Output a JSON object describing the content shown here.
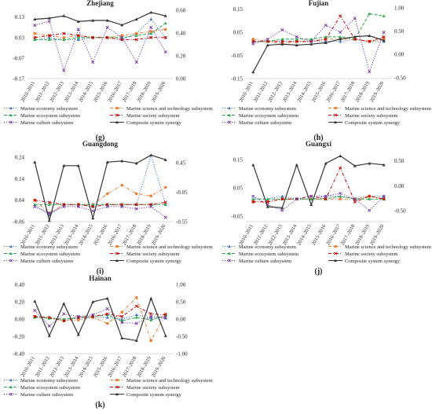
{
  "categories": [
    "2010–2011",
    "2011–2012",
    "2012–2013",
    "2013–2014",
    "2014–2015",
    "2015–2016",
    "2016–2017",
    "2017–2018",
    "2018–2019",
    "2019–2020"
  ],
  "series_styles": {
    "Marine economy subsystem": {
      "color": "#4472c4",
      "dash": "dot",
      "marker": "triangle"
    },
    "Marine science and technology subsystem": {
      "color": "#ed7d31",
      "dash": "dashdot",
      "marker": "circle"
    },
    "Marine ecosystem subsystem": {
      "color": "#2fa84f",
      "dash": "dash",
      "marker": "triangle"
    },
    "Marine society subsystem": {
      "color": "#c00000",
      "dash": "dashdot",
      "marker": "cross"
    },
    "Marine culture subsystem": {
      "color": "#7030a0",
      "dash": "dot",
      "marker": "cross"
    },
    "Composite system synergy": {
      "color": "#333333",
      "dash": "solid",
      "marker": "triangle"
    }
  },
  "chart_data": [
    {
      "type": "line",
      "title": "Zhejiang",
      "panel_label": "(g)",
      "left_ticks": [
        "0.13",
        "0.03",
        "-0.07",
        "-0.17"
      ],
      "ylim": [
        -0.17,
        0.175
      ],
      "right_ticks": [
        "0.60",
        "0.40",
        "0.20",
        "0.00"
      ],
      "y2lim": [
        0,
        0.62
      ],
      "series": [
        {
          "name": "Marine economy subsystem",
          "values": [
            0.02,
            0.03,
            0.02,
            0.02,
            0.03,
            0.03,
            0.02,
            0.05,
            0.12,
            0.03
          ]
        },
        {
          "name": "Marine science and technology subsystem",
          "values": [
            0.05,
            0.04,
            0.03,
            0.04,
            0.03,
            0.03,
            0.04,
            0.05,
            0.06,
            0.07
          ]
        },
        {
          "name": "Marine ecosystem subsystem",
          "values": [
            0.02,
            0.02,
            0.02,
            0.03,
            0.03,
            0.03,
            0.03,
            0.04,
            0.05,
            0.1
          ]
        },
        {
          "name": "Marine society subsystem",
          "values": [
            0.03,
            0.04,
            0.05,
            0.04,
            0.03,
            0.03,
            0.02,
            0.02,
            0.03,
            0.03
          ]
        },
        {
          "name": "Marine culture subsystem",
          "values": [
            0.09,
            0.11,
            -0.13,
            0.07,
            -0.09,
            0.08,
            0.03,
            -0.09,
            0.08,
            -0.04
          ]
        },
        {
          "name": "Composite system synergy",
          "axis": "right",
          "values": [
            0.52,
            0.53,
            0.55,
            0.5,
            0.51,
            0.51,
            0.47,
            0.52,
            0.58,
            0.55
          ]
        }
      ]
    },
    {
      "type": "line",
      "title": "Fujian",
      "panel_label": "(h)",
      "left_ticks": [
        "0.15",
        "0.05",
        "-0.05",
        "-0.15"
      ],
      "ylim": [
        -0.15,
        0.155
      ],
      "right_ticks": [
        "1.00",
        "0.50",
        "0.00",
        "-0.50"
      ],
      "y2lim": [
        -0.52,
        1.0
      ],
      "series": [
        {
          "name": "Marine economy subsystem",
          "values": [
            0.01,
            0.01,
            0.01,
            0.01,
            0.01,
            0.01,
            0.01,
            0.02,
            0.01,
            0.01
          ]
        },
        {
          "name": "Marine science and technology subsystem",
          "values": [
            0.02,
            0.01,
            0.0,
            0.01,
            0.01,
            0.02,
            0.02,
            0.02,
            0.01,
            0.02
          ]
        },
        {
          "name": "Marine ecosystem subsystem",
          "values": [
            0.01,
            0.01,
            0.02,
            0.02,
            0.02,
            0.03,
            0.03,
            0.02,
            0.13,
            0.12
          ]
        },
        {
          "name": "Marine society subsystem",
          "values": [
            0.01,
            0.01,
            0.01,
            0.01,
            0.01,
            0.02,
            0.12,
            0.02,
            0.01,
            0.03
          ]
        },
        {
          "name": "Marine culture subsystem",
          "values": [
            0.0,
            0.02,
            0.06,
            0.03,
            0.01,
            0.08,
            0.05,
            0.11,
            -0.12,
            0.05
          ]
        },
        {
          "name": "Composite system synergy",
          "axis": "right",
          "values": [
            -0.38,
            0.2,
            0.22,
            0.2,
            0.22,
            0.25,
            0.33,
            0.38,
            0.4,
            0.3
          ]
        }
      ]
    },
    {
      "type": "line",
      "title": "Guangdong",
      "panel_label": "(i)",
      "left_ticks": [
        "0.24",
        "0.14",
        "0.04",
        "-0.06"
      ],
      "ylim": [
        -0.06,
        0.27
      ],
      "right_ticks": [
        "0.45",
        "-0.05",
        "-0.55"
      ],
      "y2lim": [
        -0.55,
        0.65
      ],
      "series": [
        {
          "name": "Marine economy subsystem",
          "values": [
            0.02,
            -0.03,
            0.02,
            0.02,
            0.01,
            0.02,
            0.02,
            0.02,
            0.25,
            0.02
          ]
        },
        {
          "name": "Marine science and technology subsystem",
          "values": [
            0.04,
            -0.02,
            0.02,
            0.02,
            0.02,
            0.07,
            0.11,
            0.07,
            0.06,
            0.1
          ]
        },
        {
          "name": "Marine ecosystem subsystem",
          "values": [
            0.02,
            0.02,
            0.02,
            0.02,
            0.02,
            0.02,
            0.02,
            0.02,
            0.02,
            0.02
          ]
        },
        {
          "name": "Marine society subsystem",
          "values": [
            0.04,
            0.03,
            0.02,
            0.02,
            0.01,
            0.02,
            0.02,
            0.02,
            0.02,
            0.03
          ]
        },
        {
          "name": "Marine culture subsystem",
          "values": [
            0.01,
            -0.02,
            0.01,
            0.01,
            -0.01,
            0.01,
            0.01,
            0.0,
            0.01,
            -0.04
          ]
        },
        {
          "name": "Composite system synergy",
          "axis": "right",
          "values": [
            0.46,
            -0.53,
            0.4,
            0.4,
            -0.49,
            0.46,
            0.48,
            0.44,
            0.58,
            0.5
          ]
        }
      ]
    },
    {
      "type": "line",
      "title": "Guangxi",
      "panel_label": "(j)",
      "left_ticks": [
        "0.15",
        "0.05",
        "-0.05"
      ],
      "ylim": [
        -0.07,
        0.18
      ],
      "right_ticks": [
        "0.50",
        "0.00",
        "-0.50"
      ],
      "y2lim": [
        -0.72,
        0.7
      ],
      "series": [
        {
          "name": "Marine economy subsystem",
          "values": [
            0.01,
            0.01,
            0.02,
            0.01,
            0.01,
            0.02,
            0.02,
            0.01,
            0.02,
            0.02
          ]
        },
        {
          "name": "Marine science and technology subsystem",
          "values": [
            0.0,
            0.0,
            0.01,
            0.01,
            0.01,
            0.01,
            0.01,
            0.01,
            0.02,
            0.01
          ]
        },
        {
          "name": "Marine ecosystem subsystem",
          "values": [
            0.01,
            0.01,
            0.01,
            0.01,
            0.01,
            0.01,
            0.02,
            0.01,
            0.01,
            0.01
          ]
        },
        {
          "name": "Marine society subsystem",
          "values": [
            0.0,
            0.0,
            0.01,
            0.01,
            0.02,
            0.01,
            0.12,
            0.0,
            0.02,
            0.01
          ]
        },
        {
          "name": "Marine culture subsystem",
          "values": [
            0.02,
            -0.01,
            -0.03,
            0.01,
            0.02,
            0.02,
            0.03,
            0.01,
            -0.03,
            0.02
          ]
        },
        {
          "name": "Composite system synergy",
          "axis": "right",
          "values": [
            0.42,
            -0.42,
            -0.44,
            0.42,
            -0.38,
            0.45,
            0.6,
            0.4,
            0.45,
            0.42
          ]
        }
      ]
    },
    {
      "type": "line",
      "title": "Hainan",
      "panel_label": "(k)",
      "left_ticks": [
        "0.40",
        "0.20",
        "0.00",
        "-0.20",
        "-0.40"
      ],
      "ylim": [
        -0.4,
        0.4
      ],
      "right_ticks": [
        "1.00",
        "0.50",
        "0.00",
        "-0.50",
        "-1.00"
      ],
      "y2lim": [
        -1.0,
        1.0
      ],
      "series": [
        {
          "name": "Marine economy subsystem",
          "values": [
            0.02,
            0.01,
            0.0,
            0.01,
            0.02,
            0.02,
            0.0,
            0.05,
            0.01,
            0.01
          ]
        },
        {
          "name": "Marine science and technology subsystem",
          "values": [
            0.03,
            0.01,
            -0.02,
            -0.01,
            0.02,
            -0.05,
            0.08,
            0.25,
            -0.25,
            0.06
          ]
        },
        {
          "name": "Marine ecosystem subsystem",
          "values": [
            0.02,
            0.01,
            0.0,
            0.02,
            0.03,
            0.05,
            -0.02,
            0.02,
            -0.01,
            0.04
          ]
        },
        {
          "name": "Marine society subsystem",
          "values": [
            0.03,
            0.02,
            -0.02,
            0.02,
            0.03,
            0.06,
            0.03,
            0.15,
            0.06,
            0.05
          ]
        },
        {
          "name": "Marine culture subsystem",
          "values": [
            0.1,
            -0.08,
            0.06,
            0.03,
            0.05,
            0.12,
            -0.04,
            -0.05,
            0.03,
            0.02
          ]
        },
        {
          "name": "Composite system synergy",
          "axis": "right",
          "values": [
            0.52,
            -0.48,
            0.45,
            -0.45,
            0.5,
            0.6,
            -0.55,
            -0.62,
            0.6,
            -0.48
          ]
        }
      ]
    }
  ]
}
